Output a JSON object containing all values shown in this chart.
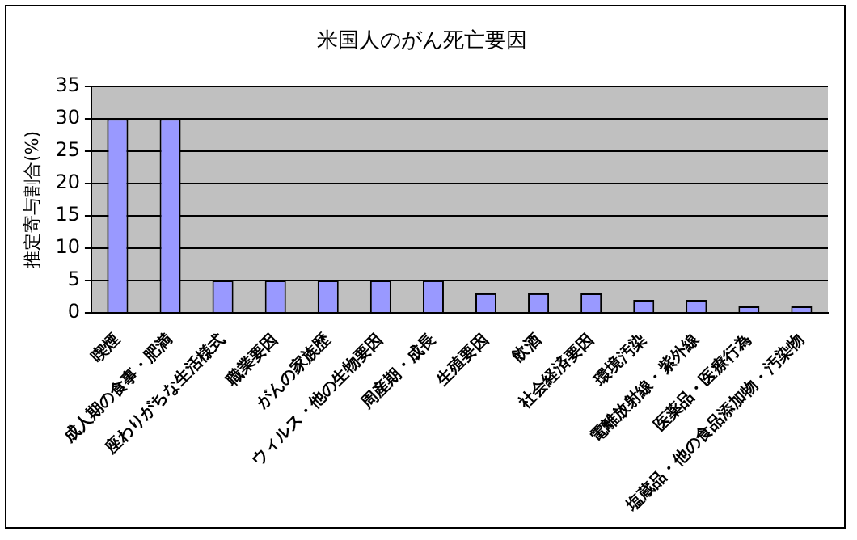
{
  "chart_data": {
    "type": "bar",
    "title": "米国人のがん死亡要因",
    "ylabel": "推定寄与割合(%)",
    "categories": [
      "喫煙",
      "成人期の食事・肥満",
      "座わりがちな生活様式",
      "職業要因",
      "がんの家族歴",
      "ウィルス・他の生物要因",
      "周産期・成長",
      "生殖要因",
      "飲酒",
      "社会経済要因",
      "環境汚染",
      "電離放射線・紫外線",
      "医薬品・医療行為",
      "塩蔵品・他の食品添加物・汚染物"
    ],
    "values": [
      30,
      30,
      5,
      5,
      5,
      5,
      5,
      3,
      3,
      3,
      2,
      2,
      1,
      1
    ],
    "color": "#9999ff",
    "ylim": [
      0,
      35
    ],
    "yticks": [
      0,
      5,
      10,
      15,
      20,
      25,
      30,
      35
    ],
    "grid": "y",
    "legend": false
  }
}
